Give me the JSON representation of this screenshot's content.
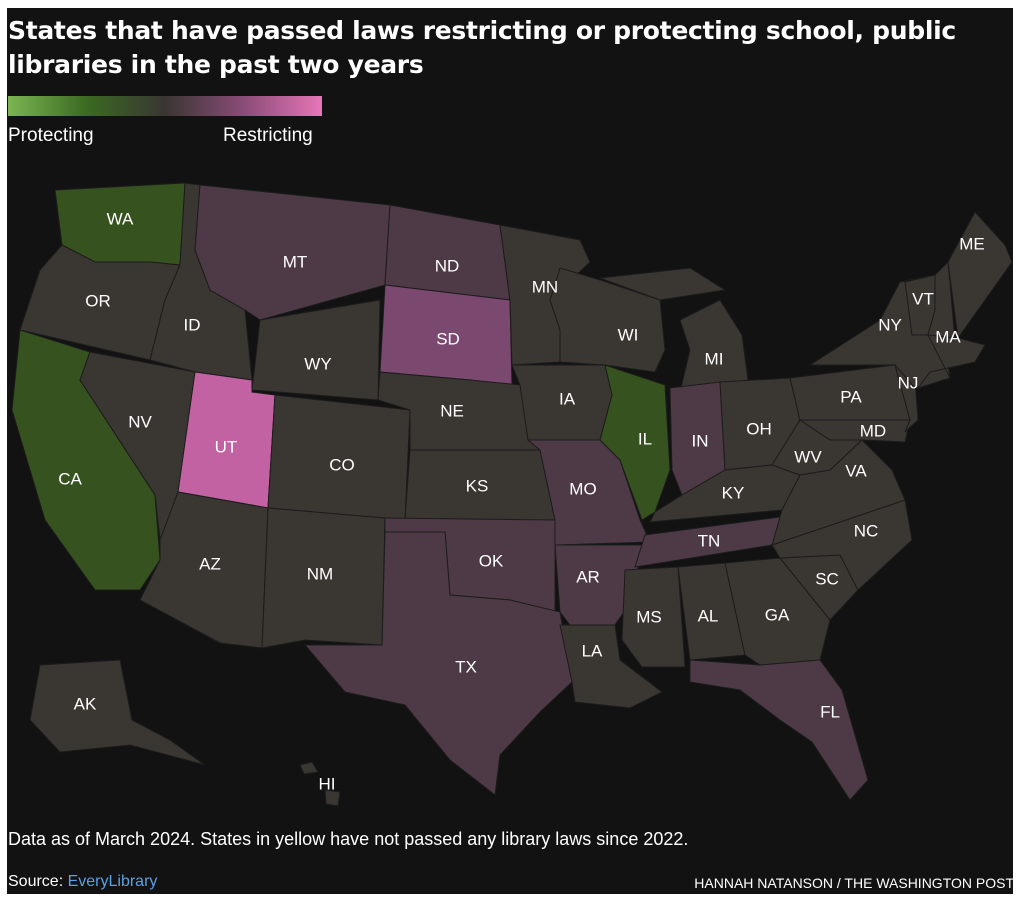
{
  "title": "States that have passed laws restricting or protecting school, public libraries in the past two years",
  "legend": {
    "low_label": "Protecting",
    "high_label": "Restricting",
    "colors": [
      "#7cb552",
      "#3b6a22",
      "#3a3632",
      "#8a4c78",
      "#e776b8"
    ]
  },
  "colors": {
    "neutral": "#3a3632",
    "protecting": "#36521f",
    "restricting_mild": "#4e3a46",
    "restricting_medium": "#7b4870",
    "restricting_strong": "#c262a3"
  },
  "states": [
    {
      "abbr": "WA",
      "status": "protecting"
    },
    {
      "abbr": "OR",
      "status": "neutral"
    },
    {
      "abbr": "CA",
      "status": "protecting"
    },
    {
      "abbr": "NV",
      "status": "neutral"
    },
    {
      "abbr": "ID",
      "status": "neutral"
    },
    {
      "abbr": "MT",
      "status": "restricting_mild"
    },
    {
      "abbr": "WY",
      "status": "neutral"
    },
    {
      "abbr": "UT",
      "status": "restricting_strong"
    },
    {
      "abbr": "CO",
      "status": "neutral"
    },
    {
      "abbr": "AZ",
      "status": "neutral"
    },
    {
      "abbr": "NM",
      "status": "neutral"
    },
    {
      "abbr": "ND",
      "status": "restricting_mild"
    },
    {
      "abbr": "SD",
      "status": "restricting_medium"
    },
    {
      "abbr": "NE",
      "status": "neutral"
    },
    {
      "abbr": "KS",
      "status": "neutral"
    },
    {
      "abbr": "OK",
      "status": "restricting_mild"
    },
    {
      "abbr": "TX",
      "status": "restricting_mild"
    },
    {
      "abbr": "MN",
      "status": "neutral"
    },
    {
      "abbr": "IA",
      "status": "neutral"
    },
    {
      "abbr": "MO",
      "status": "restricting_mild"
    },
    {
      "abbr": "AR",
      "status": "restricting_mild"
    },
    {
      "abbr": "LA",
      "status": "neutral"
    },
    {
      "abbr": "WI",
      "status": "neutral"
    },
    {
      "abbr": "IL",
      "status": "protecting"
    },
    {
      "abbr": "MI",
      "status": "neutral"
    },
    {
      "abbr": "IN",
      "status": "restricting_mild"
    },
    {
      "abbr": "OH",
      "status": "neutral"
    },
    {
      "abbr": "KY",
      "status": "neutral"
    },
    {
      "abbr": "TN",
      "status": "restricting_mild"
    },
    {
      "abbr": "MS",
      "status": "neutral"
    },
    {
      "abbr": "AL",
      "status": "neutral"
    },
    {
      "abbr": "GA",
      "status": "neutral"
    },
    {
      "abbr": "FL",
      "status": "restricting_mild"
    },
    {
      "abbr": "SC",
      "status": "neutral"
    },
    {
      "abbr": "NC",
      "status": "neutral"
    },
    {
      "abbr": "VA",
      "status": "neutral"
    },
    {
      "abbr": "WV",
      "status": "neutral"
    },
    {
      "abbr": "PA",
      "status": "neutral"
    },
    {
      "abbr": "MD",
      "status": "neutral"
    },
    {
      "abbr": "NJ",
      "status": "neutral"
    },
    {
      "abbr": "NY",
      "status": "neutral"
    },
    {
      "abbr": "VT",
      "status": "neutral"
    },
    {
      "abbr": "MA",
      "status": "neutral"
    },
    {
      "abbr": "ME",
      "status": "neutral"
    },
    {
      "abbr": "AK",
      "status": "neutral"
    },
    {
      "abbr": "HI",
      "status": "neutral"
    }
  ],
  "note": "Data as of March 2024. States in yellow have not passed any library laws since 2022.",
  "source_prefix": "Source: ",
  "source_link": "EveryLibrary",
  "credit": "HANNAH NATANSON / THE WASHINGTON POST"
}
